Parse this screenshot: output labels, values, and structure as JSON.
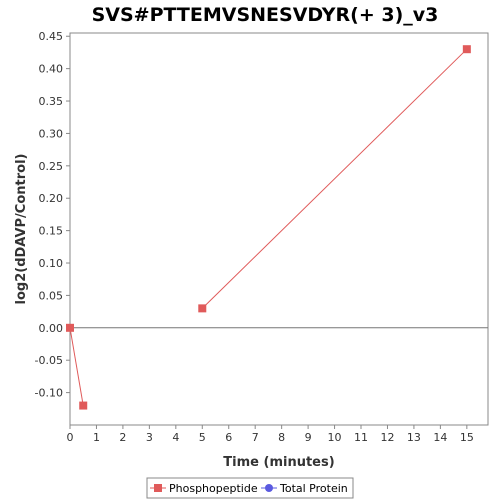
{
  "chart_data": {
    "type": "line",
    "title": "SVS#PTTEMVSNESVDYR(+ 3)_v3",
    "xlabel": "Time (minutes)",
    "ylabel": "log2(dDAVP/Control)",
    "xlim": [
      0,
      15.8
    ],
    "ylim": [
      -0.15,
      0.455
    ],
    "x_ticks": [
      0,
      1,
      2,
      3,
      4,
      5,
      6,
      7,
      8,
      9,
      10,
      11,
      12,
      13,
      14,
      15
    ],
    "x_tick_labels": [
      "0",
      "1",
      "2",
      "3",
      "4",
      "5",
      "6",
      "7",
      "8",
      "9",
      "10",
      "11",
      "12",
      "13",
      "14",
      "15"
    ],
    "y_ticks": [
      -0.1,
      -0.05,
      0.0,
      0.05,
      0.1,
      0.15,
      0.2,
      0.25,
      0.3,
      0.35,
      0.4,
      0.45
    ],
    "y_tick_labels": [
      "-0.10",
      "-0.05",
      "0.00",
      "0.05",
      "0.10",
      "0.15",
      "0.20",
      "0.25",
      "0.30",
      "0.35",
      "0.40",
      "0.45"
    ],
    "zero_line": true,
    "grid": false,
    "legend_position": "bottom-center",
    "series": [
      {
        "name": "Phosphopeptide",
        "color": "#e05a5a",
        "marker": "square",
        "segments": [
          [
            {
              "x": 0,
              "y": 0.0
            },
            {
              "x": 0.5,
              "y": -0.12
            }
          ],
          [
            {
              "x": 5,
              "y": 0.03
            },
            {
              "x": 15,
              "y": 0.43
            }
          ]
        ]
      },
      {
        "name": "Total Protein",
        "color": "#5a5ae0",
        "marker": "circle",
        "segments": []
      }
    ]
  }
}
